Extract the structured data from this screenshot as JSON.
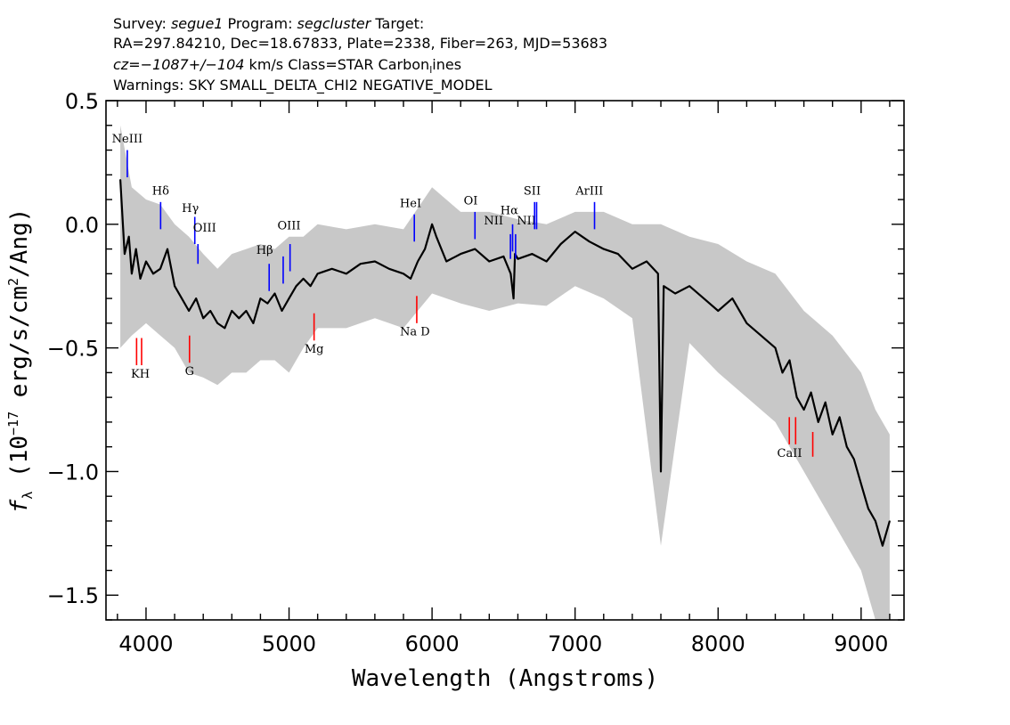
{
  "header": {
    "line1": {
      "survey_label": "Survey: ",
      "survey": "segue1",
      "program_label": " Program: ",
      "program": "segcluster",
      "target_label": " Target:"
    },
    "line2": "RA=297.84210, Dec=18.67833, Plate=2338, Fiber=263, MJD=53683",
    "line3": {
      "cz": "cz=−1087+/−104",
      "rest": " km/s Class=STAR Carbon",
      "sub": "l",
      "tail": "ines"
    },
    "line4": "Warnings: SKY SMALL_DELTA_CHI2 NEGATIVE_MODEL"
  },
  "chart_data": {
    "type": "line",
    "xlabel": "Wavelength (Angstroms)",
    "ylabel": "fλ (10⁻¹⁷ erg/s/cm²/Ang)",
    "xlim": [
      3720,
      9300
    ],
    "ylim": [
      -1.6,
      0.5
    ],
    "x_ticks": [
      4000,
      5000,
      6000,
      7000,
      8000,
      9000
    ],
    "x_tick_labels": [
      "4000",
      "5000",
      "6000",
      "7000",
      "8000",
      "9000"
    ],
    "y_ticks": [
      0.5,
      0.0,
      -0.5,
      -1.0,
      -1.5
    ],
    "y_tick_labels": [
      "0.5",
      "0.0",
      "−0.5",
      "−1.0",
      "−1.5"
    ],
    "grid": false,
    "colors": {
      "flux": "#000000",
      "error_band": "#c8c8c8",
      "emission": "#0000ff",
      "absorption": "#ff0000"
    },
    "series": [
      {
        "role": "flux",
        "x": [
          3820,
          3850,
          3880,
          3900,
          3930,
          3960,
          4000,
          4050,
          4100,
          4150,
          4200,
          4250,
          4300,
          4350,
          4400,
          4450,
          4500,
          4550,
          4600,
          4650,
          4700,
          4750,
          4800,
          4850,
          4900,
          4950,
          5000,
          5050,
          5100,
          5150,
          5200,
          5300,
          5400,
          5500,
          5600,
          5700,
          5800,
          5850,
          5900,
          5950,
          6000,
          6030,
          6100,
          6200,
          6300,
          6400,
          6500,
          6550,
          6570,
          6580,
          6600,
          6700,
          6800,
          6900,
          7000,
          7050,
          7100,
          7200,
          7300,
          7400,
          7500,
          7580,
          7600,
          7620,
          7700,
          7800,
          7900,
          8000,
          8100,
          8200,
          8300,
          8400,
          8450,
          8500,
          8550,
          8600,
          8650,
          8700,
          8750,
          8800,
          8850,
          8900,
          8950,
          9000,
          9050,
          9100,
          9150,
          9200
        ],
        "y": [
          0.18,
          -0.12,
          -0.05,
          -0.2,
          -0.1,
          -0.22,
          -0.15,
          -0.2,
          -0.18,
          -0.1,
          -0.25,
          -0.3,
          -0.35,
          -0.3,
          -0.38,
          -0.35,
          -0.4,
          -0.42,
          -0.35,
          -0.38,
          -0.35,
          -0.4,
          -0.3,
          -0.32,
          -0.28,
          -0.35,
          -0.3,
          -0.25,
          -0.22,
          -0.25,
          -0.2,
          -0.18,
          -0.2,
          -0.16,
          -0.15,
          -0.18,
          -0.2,
          -0.22,
          -0.15,
          -0.1,
          0.0,
          -0.05,
          -0.15,
          -0.12,
          -0.1,
          -0.15,
          -0.13,
          -0.2,
          -0.3,
          -0.12,
          -0.14,
          -0.12,
          -0.15,
          -0.08,
          -0.03,
          -0.05,
          -0.07,
          -0.1,
          -0.12,
          -0.18,
          -0.15,
          -0.2,
          -1.0,
          -0.25,
          -0.28,
          -0.25,
          -0.3,
          -0.35,
          -0.3,
          -0.4,
          -0.45,
          -0.5,
          -0.6,
          -0.55,
          -0.7,
          -0.75,
          -0.68,
          -0.8,
          -0.72,
          -0.85,
          -0.78,
          -0.9,
          -0.95,
          -1.05,
          -1.15,
          -1.2,
          -1.3,
          -1.2
        ]
      },
      {
        "role": "error_band",
        "x": [
          3820,
          3900,
          4000,
          4100,
          4200,
          4300,
          4400,
          4500,
          4600,
          4700,
          4800,
          4900,
          5000,
          5100,
          5200,
          5400,
          5600,
          5800,
          6000,
          6200,
          6400,
          6600,
          6800,
          7000,
          7200,
          7400,
          7600,
          7800,
          8000,
          8200,
          8400,
          8600,
          8800,
          9000,
          9100,
          9200
        ],
        "upper": [
          0.4,
          0.15,
          0.1,
          0.08,
          0.0,
          -0.05,
          -0.12,
          -0.18,
          -0.12,
          -0.1,
          -0.08,
          -0.1,
          -0.05,
          -0.05,
          0.0,
          -0.02,
          0.0,
          -0.02,
          0.15,
          0.05,
          0.05,
          0.02,
          0.0,
          0.05,
          0.05,
          0.0,
          0.0,
          -0.05,
          -0.08,
          -0.15,
          -0.2,
          -0.35,
          -0.45,
          -0.6,
          -0.75,
          -0.85
        ],
        "lower": [
          -0.5,
          -0.45,
          -0.4,
          -0.45,
          -0.5,
          -0.6,
          -0.62,
          -0.65,
          -0.6,
          -0.6,
          -0.55,
          -0.55,
          -0.6,
          -0.5,
          -0.42,
          -0.42,
          -0.38,
          -0.42,
          -0.28,
          -0.32,
          -0.35,
          -0.32,
          -0.33,
          -0.25,
          -0.3,
          -0.38,
          -1.3,
          -0.48,
          -0.6,
          -0.7,
          -0.8,
          -1.0,
          -1.2,
          -1.4,
          -1.6,
          -1.6
        ]
      }
    ],
    "annotations": [
      {
        "label": "NeIII",
        "x": 3869,
        "y_top": 0.3,
        "y_bot": 0.19,
        "kind": "emission",
        "label_x": 3869,
        "label_y": 0.33
      },
      {
        "label": "Hδ",
        "x": 4102,
        "y_top": 0.09,
        "y_bot": -0.02,
        "kind": "emission",
        "label_x": 4102,
        "label_y": 0.12
      },
      {
        "label": "Hγ",
        "x": 4341,
        "y_top": 0.03,
        "y_bot": -0.08,
        "kind": "emission",
        "label_x": 4310,
        "label_y": 0.05
      },
      {
        "label": "OIII",
        "x": 4363,
        "y_top": -0.08,
        "y_bot": -0.16,
        "kind": "emission",
        "label_x": 4410,
        "label_y": -0.03
      },
      {
        "label": "Hβ",
        "x": 4861,
        "y_top": -0.16,
        "y_bot": -0.27,
        "kind": "emission",
        "label_x": 4830,
        "label_y": -0.12
      },
      {
        "label": "OIII",
        "x": 4959,
        "y_top": -0.13,
        "y_bot": -0.24,
        "kind": "emission",
        "label_x": 5000,
        "label_y": -0.02
      },
      {
        "label": "OIII",
        "x": 5007,
        "y_top": -0.08,
        "y_bot": -0.19,
        "kind": "emission",
        "label_x": null,
        "label_y": null
      },
      {
        "label": "HeI",
        "x": 5876,
        "y_top": 0.04,
        "y_bot": -0.07,
        "kind": "emission",
        "label_x": 5850,
        "label_y": 0.07
      },
      {
        "label": "OI",
        "x": 6300,
        "y_top": 0.05,
        "y_bot": -0.06,
        "kind": "emission",
        "label_x": 6270,
        "label_y": 0.08
      },
      {
        "label": "NII",
        "x": 6548,
        "y_top": -0.04,
        "y_bot": -0.14,
        "kind": "emission",
        "label_x": 6430,
        "label_y": 0.0
      },
      {
        "label": "Hα",
        "x": 6563,
        "y_top": 0.0,
        "y_bot": -0.11,
        "kind": "emission",
        "label_x": 6540,
        "label_y": 0.04
      },
      {
        "label": "NII",
        "x": 6584,
        "y_top": -0.04,
        "y_bot": -0.14,
        "kind": "emission",
        "label_x": 6660,
        "label_y": 0.0
      },
      {
        "label": "SII",
        "x": 6717,
        "y_top": 0.09,
        "y_bot": -0.02,
        "kind": "emission",
        "label_x": 6700,
        "label_y": 0.12
      },
      {
        "label": "SII",
        "x": 6731,
        "y_top": 0.09,
        "y_bot": -0.02,
        "kind": "emission",
        "label_x": null,
        "label_y": null
      },
      {
        "label": "ArIII",
        "x": 7136,
        "y_top": 0.09,
        "y_bot": -0.02,
        "kind": "emission",
        "label_x": 7100,
        "label_y": 0.12
      },
      {
        "label": "KH",
        "x": 3934,
        "y_top": -0.46,
        "y_bot": -0.57,
        "kind": "absorption",
        "label_x": 3960,
        "label_y": -0.62
      },
      {
        "label": "KH",
        "x": 3969,
        "y_top": -0.46,
        "y_bot": -0.57,
        "kind": "absorption",
        "label_x": null,
        "label_y": null
      },
      {
        "label": "G",
        "x": 4304,
        "y_top": -0.45,
        "y_bot": -0.56,
        "kind": "absorption",
        "label_x": 4304,
        "label_y": -0.61
      },
      {
        "label": "Mg",
        "x": 5175,
        "y_top": -0.36,
        "y_bot": -0.47,
        "kind": "absorption",
        "label_x": 5175,
        "label_y": -0.52
      },
      {
        "label": "Na D",
        "x": 5893,
        "y_top": -0.29,
        "y_bot": -0.4,
        "kind": "absorption",
        "label_x": 5880,
        "label_y": -0.45
      },
      {
        "label": "CaII",
        "x": 8498,
        "y_top": -0.78,
        "y_bot": -0.89,
        "kind": "absorption",
        "label_x": 8500,
        "label_y": -0.94
      },
      {
        "label": "CaII",
        "x": 8542,
        "y_top": -0.78,
        "y_bot": -0.89,
        "kind": "absorption",
        "label_x": null,
        "label_y": null
      },
      {
        "label": "CaII",
        "x": 8662,
        "y_top": -0.84,
        "y_bot": -0.94,
        "kind": "absorption",
        "label_x": null,
        "label_y": null
      }
    ]
  }
}
